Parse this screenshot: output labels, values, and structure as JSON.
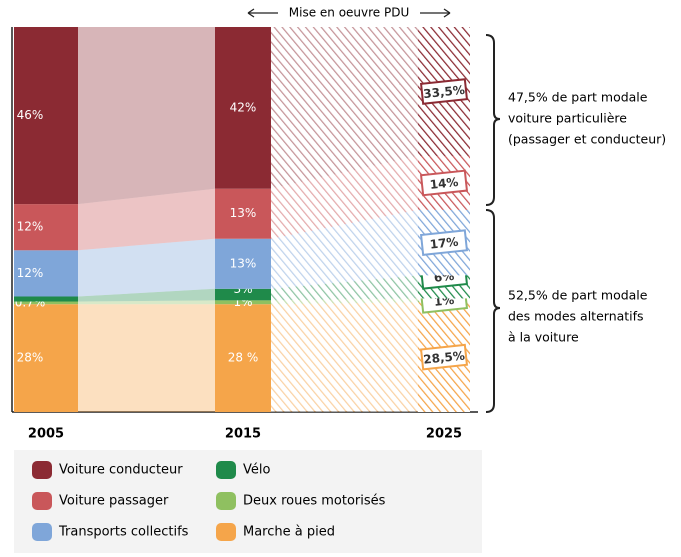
{
  "chart_data": {
    "type": "stacked-bar",
    "categories": [
      "2005",
      "2015",
      "2025"
    ],
    "series": [
      {
        "name": "Marche à pied",
        "color": "#f5a54a",
        "values": [
          28,
          28,
          28.5
        ],
        "value_labels": [
          "28%",
          "28 %",
          "28,5%"
        ]
      },
      {
        "name": "Deux roues motorisés",
        "color": "#8fc060",
        "values": [
          0.7,
          1,
          1
        ],
        "value_labels": [
          "0.7%",
          "1%",
          "1%"
        ]
      },
      {
        "name": "Vélo",
        "color": "#1f8a4a",
        "values": [
          1.3,
          3,
          6
        ],
        "value_labels": [
          "1.3%",
          "3%",
          "6%"
        ]
      },
      {
        "name": "Transports collectifs",
        "color": "#7fa6d9",
        "values": [
          12,
          13,
          17
        ],
        "value_labels": [
          "12%",
          "13%",
          "17%"
        ]
      },
      {
        "name": "Voiture passager",
        "color": "#c9575a",
        "values": [
          12,
          13,
          14
        ],
        "value_labels": [
          "12%",
          "13%",
          "14%"
        ]
      },
      {
        "name": "Voiture conducteur",
        "color": "#8b2a33",
        "values": [
          46,
          42,
          33.5
        ],
        "value_labels": [
          "46%",
          "42%",
          "33,5%"
        ]
      }
    ],
    "annotations": {
      "pdu": "Mise en oeuvre PDU",
      "car_share": [
        "47,5% de part modale",
        "voiture particulière",
        "(passager et conducteur)"
      ],
      "alt_share": [
        "52,5% de part modale",
        "des modes alternatifs",
        "à la voiture"
      ]
    }
  }
}
